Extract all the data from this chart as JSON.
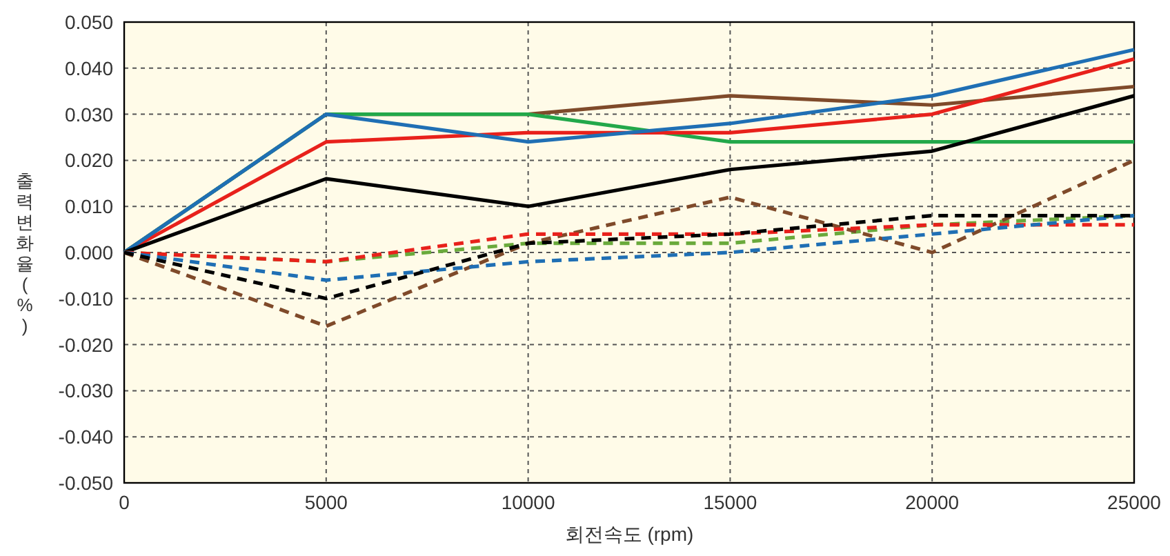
{
  "chart_data": {
    "type": "line",
    "xlabel": "회전속도 (rpm)",
    "ylabel": "출력변화율 (%)",
    "x": [
      0,
      5000,
      10000,
      15000,
      20000,
      25000
    ],
    "xlim": [
      0,
      25000
    ],
    "xticks": [
      0,
      5000,
      10000,
      15000,
      20000,
      25000
    ],
    "ylim": [
      -0.05,
      0.05
    ],
    "yticks": [
      {
        "value": -0.05,
        "label": "-0.050"
      },
      {
        "value": -0.04,
        "label": "-0.040"
      },
      {
        "value": -0.03,
        "label": "-0.030"
      },
      {
        "value": -0.02,
        "label": "-0.020"
      },
      {
        "value": -0.01,
        "label": "-0.010"
      },
      {
        "value": 0,
        "label": "0.000"
      },
      {
        "value": 0.01,
        "label": "0.010"
      },
      {
        "value": 0.02,
        "label": "0.020"
      },
      {
        "value": 0.03,
        "label": "0.030"
      },
      {
        "value": 0.04,
        "label": "0.040"
      },
      {
        "value": 0.05,
        "label": "0.050"
      }
    ],
    "grid": true,
    "marker": "none",
    "series": [
      {
        "color": "#7f4a2a",
        "line_style": "solid",
        "values": [
          0,
          0.03,
          0.03,
          0.034,
          0.032,
          0.036
        ]
      },
      {
        "color": "#22a84a",
        "line_style": "solid",
        "values": [
          0,
          0.03,
          0.03,
          0.024,
          0.024,
          0.024
        ]
      },
      {
        "color": "#e8211b",
        "line_style": "solid",
        "values": [
          0,
          0.024,
          0.026,
          0.026,
          0.03,
          0.042
        ]
      },
      {
        "color": "#1f6fb4",
        "line_style": "solid",
        "values": [
          0,
          0.03,
          0.024,
          0.028,
          0.034,
          0.044
        ]
      },
      {
        "color": "#000000",
        "line_style": "solid",
        "values": [
          0,
          0.016,
          0.01,
          0.018,
          0.022,
          0.034
        ]
      },
      {
        "color": "#6aaa3c",
        "line_style": "dashed",
        "values": [
          0,
          -0.002,
          0.002,
          0.002,
          0.006,
          0.008
        ]
      },
      {
        "color": "#7f4a2a",
        "line_style": "dashed",
        "values": [
          0,
          -0.016,
          0.002,
          0.012,
          0,
          0.02
        ]
      },
      {
        "color": "#e8211b",
        "line_style": "dashed",
        "values": [
          0,
          -0.002,
          0.004,
          0.004,
          0.006,
          0.006
        ]
      },
      {
        "color": "#1f6fb4",
        "line_style": "dashed",
        "values": [
          0,
          -0.006,
          -0.002,
          0,
          0.004,
          0.008
        ]
      },
      {
        "color": "#000000",
        "line_style": "dashed",
        "values": [
          0,
          -0.01,
          0.002,
          0.004,
          0.008,
          0.008
        ]
      }
    ]
  }
}
